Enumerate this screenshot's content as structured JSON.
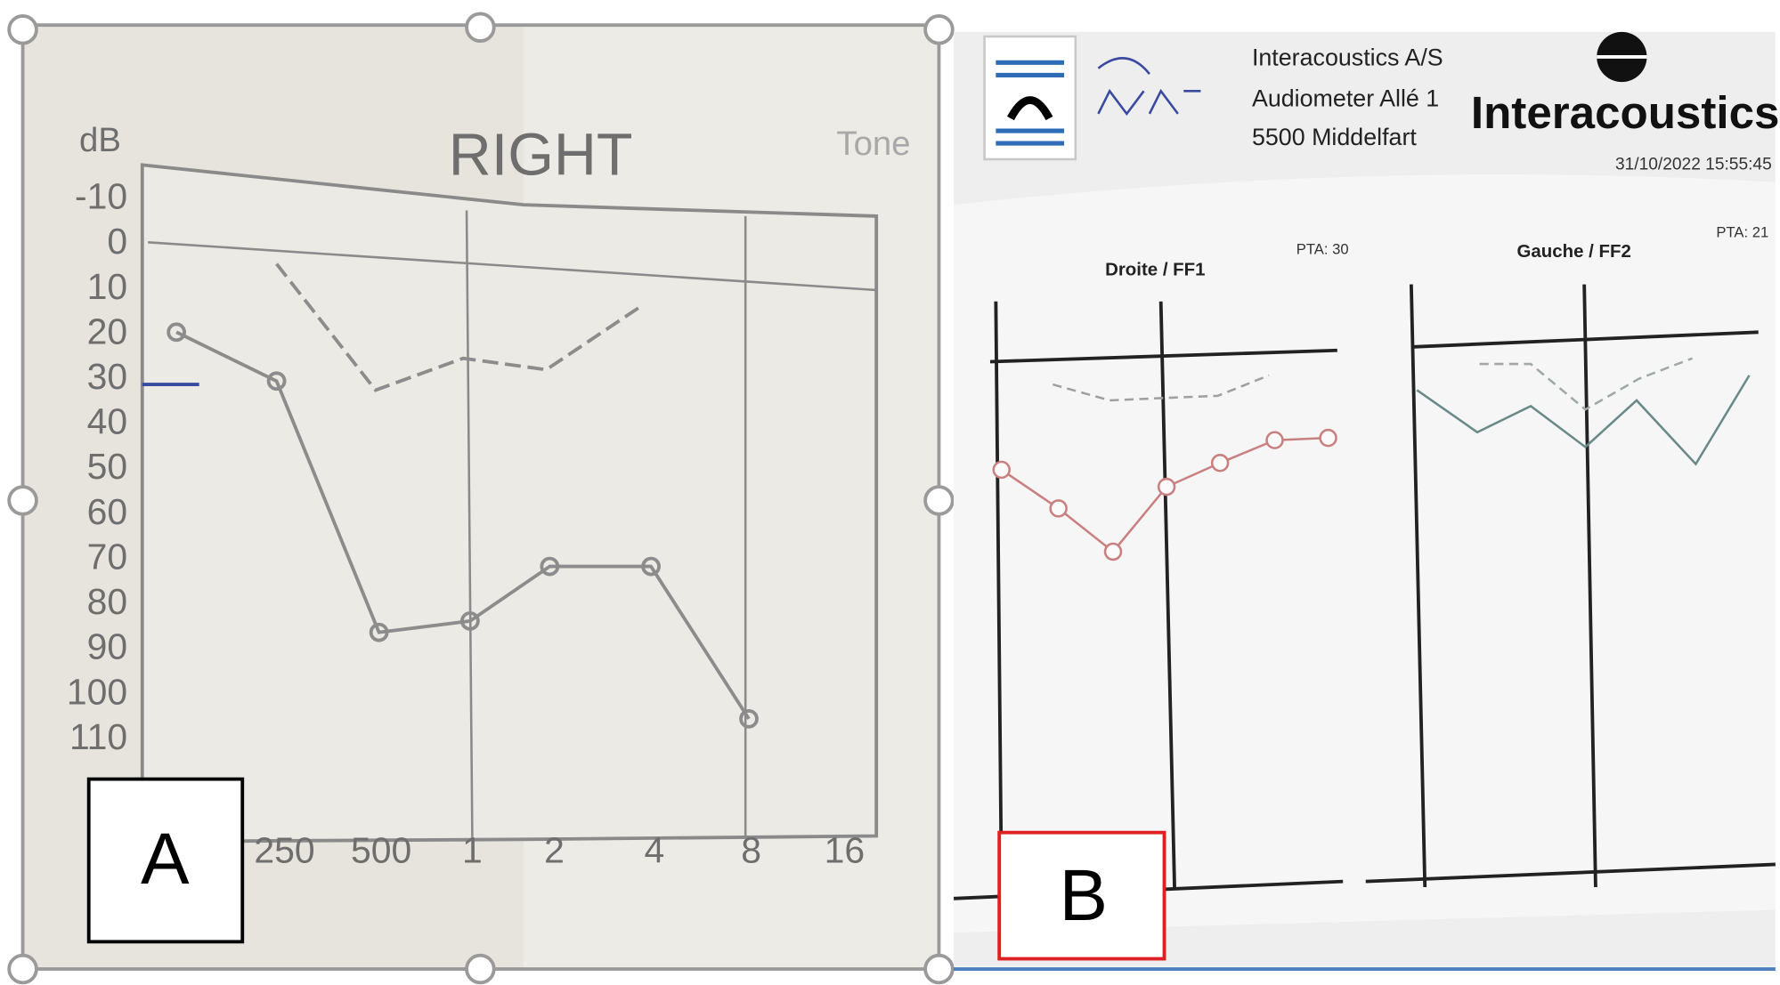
{
  "panel_a": {
    "y_unit": "dB",
    "title": "RIGHT",
    "partial_heading": "Tone",
    "y_labels": [
      "-10",
      "0",
      "10",
      "20",
      "30",
      "40",
      "50",
      "60",
      "70",
      "80",
      "90",
      "100",
      "110"
    ],
    "x_labels": [
      "250",
      "500",
      "1",
      "2",
      "4",
      "8",
      "16"
    ],
    "corner_label": "A"
  },
  "panel_b": {
    "company_lines": [
      "Interacoustics A/S",
      "Audiometer Allé 1",
      "5500 Middelfart"
    ],
    "brand": "Interacoustics",
    "timestamp": "31/10/2022 15:55:45",
    "left_chart_title": "Droite / FF1",
    "left_pta": "PTA: 30",
    "right_chart_title": "Gauche / FF2",
    "right_pta": "PTA: 21",
    "corner_label": "B"
  }
}
